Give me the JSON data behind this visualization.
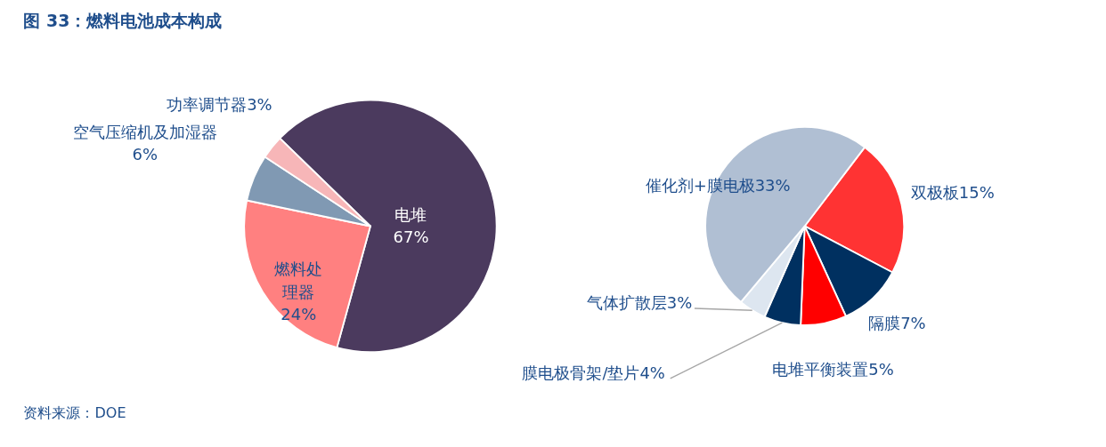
{
  "chart_data": [
    {
      "type": "pie",
      "title": "图 33：燃料电池成本构成",
      "categories": [
        "电堆",
        "燃料处理器",
        "空气压缩机及加湿器",
        "功率调节器"
      ],
      "values": [
        67,
        24,
        6,
        3
      ],
      "value_labels": [
        "67%",
        "24%",
        "6%",
        "3%"
      ],
      "colors": [
        "#4b3a5e",
        "#ff8080",
        "#8099b3",
        "#f7b6b8"
      ],
      "annotations": [
        "资料来源：DOE"
      ],
      "legend": false
    },
    {
      "type": "pie",
      "categories": [
        "双极板",
        "隔膜",
        "电堆平衡装置",
        "膜电极骨架/垫片",
        "气体扩散层",
        "催化剂+膜电极"
      ],
      "values": [
        15,
        7,
        5,
        4,
        3,
        33
      ],
      "value_labels": [
        "15%",
        "7%",
        "5%",
        "4%",
        "3%",
        "33%"
      ],
      "colors": [
        "#ff3333",
        "#003060",
        "#ff0000",
        "#003060",
        "#dde6f0",
        "#b0bfd3"
      ],
      "legend": false
    }
  ]
}
